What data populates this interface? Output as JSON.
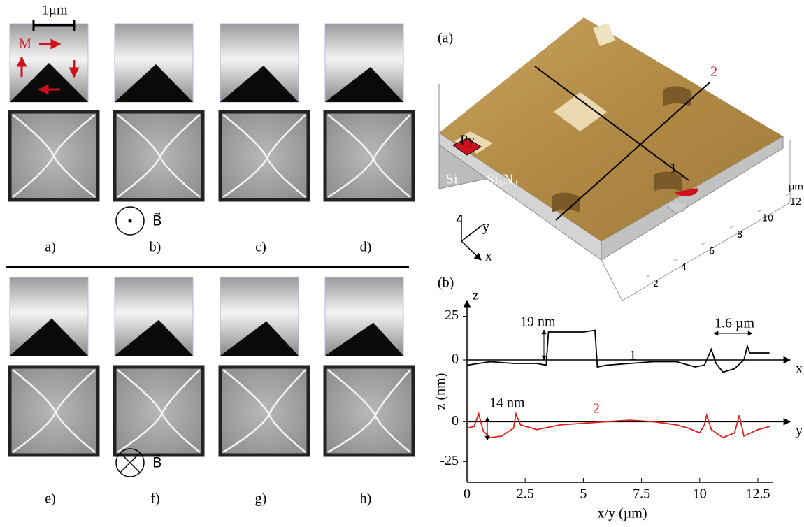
{
  "left_panel": {
    "scale_bar": "1µm",
    "magnetization_label": "M",
    "field_out_label": "B⃗",
    "field_in_label": "B⃗",
    "panel_labels": [
      "a)",
      "b)",
      "c)",
      "d)",
      "e)",
      "f)",
      "g)",
      "h)"
    ]
  },
  "afm_image": {
    "label": "(a)",
    "py": "Py",
    "si": "Si",
    "si3n4": "Si₃N₄",
    "line_1": "1",
    "line_2": "2",
    "axis_z": "z",
    "axis_y": "y",
    "axis_x": "x",
    "unit": "µm",
    "ticks": [
      2,
      4,
      6,
      8,
      10,
      12
    ]
  },
  "chart_data": [
    {
      "type": "line",
      "label": "(b)",
      "axis_label": "z",
      "axis_end_label": "x",
      "curve_label": "1",
      "annotations": [
        "19 nm",
        "1.6 µm"
      ],
      "xlim": [
        0,
        13
      ],
      "ylim": [
        -18,
        34
      ],
      "yticks": [
        25,
        0
      ],
      "series": [
        {
          "name": "1",
          "color": "#000000",
          "x": [
            0,
            0.5,
            1,
            2,
            3,
            3.4,
            3.5,
            4,
            4.5,
            5,
            5.5,
            5.6,
            6,
            7,
            8,
            9,
            9.8,
            10.2,
            10.5,
            10.7,
            11,
            11.5,
            11.9,
            12.05,
            12.15,
            13
          ],
          "values": [
            -3,
            -2,
            -1,
            -2,
            -2,
            -3,
            16,
            16,
            16,
            16,
            17,
            -4,
            -3,
            -2,
            -1,
            -1,
            -4,
            -3,
            6,
            -2,
            -7,
            -5,
            0,
            8,
            4,
            4
          ]
        }
      ]
    },
    {
      "type": "line",
      "axis_end_label": "y",
      "curve_label": "2",
      "annotations": [
        "14 nm"
      ],
      "y_axis_label": "z (nm)",
      "x_axis_label": "x/y (µm)",
      "xlim": [
        0,
        13
      ],
      "ylim": [
        -38,
        19
      ],
      "yticks": [
        0,
        -25
      ],
      "xticks": [
        0,
        2.5,
        5,
        7.5,
        10,
        12.5
      ],
      "series": [
        {
          "name": "2",
          "color": "#e0201b",
          "x": [
            0,
            0.3,
            0.5,
            0.7,
            1,
            1.5,
            2,
            2.1,
            2.3,
            3,
            4,
            5,
            6,
            7,
            8,
            9,
            9.5,
            10,
            10.2,
            10.3,
            10.5,
            11,
            11.5,
            11.7,
            11.9,
            12.5,
            13
          ],
          "values": [
            -4,
            -3,
            5,
            -6,
            -10,
            -9,
            -4,
            5,
            -2,
            -5,
            -2,
            -1,
            0,
            1,
            0,
            -2,
            -4,
            -7,
            -2,
            4,
            -5,
            -10,
            -7,
            4,
            -9,
            -5,
            -3
          ]
        }
      ]
    }
  ]
}
